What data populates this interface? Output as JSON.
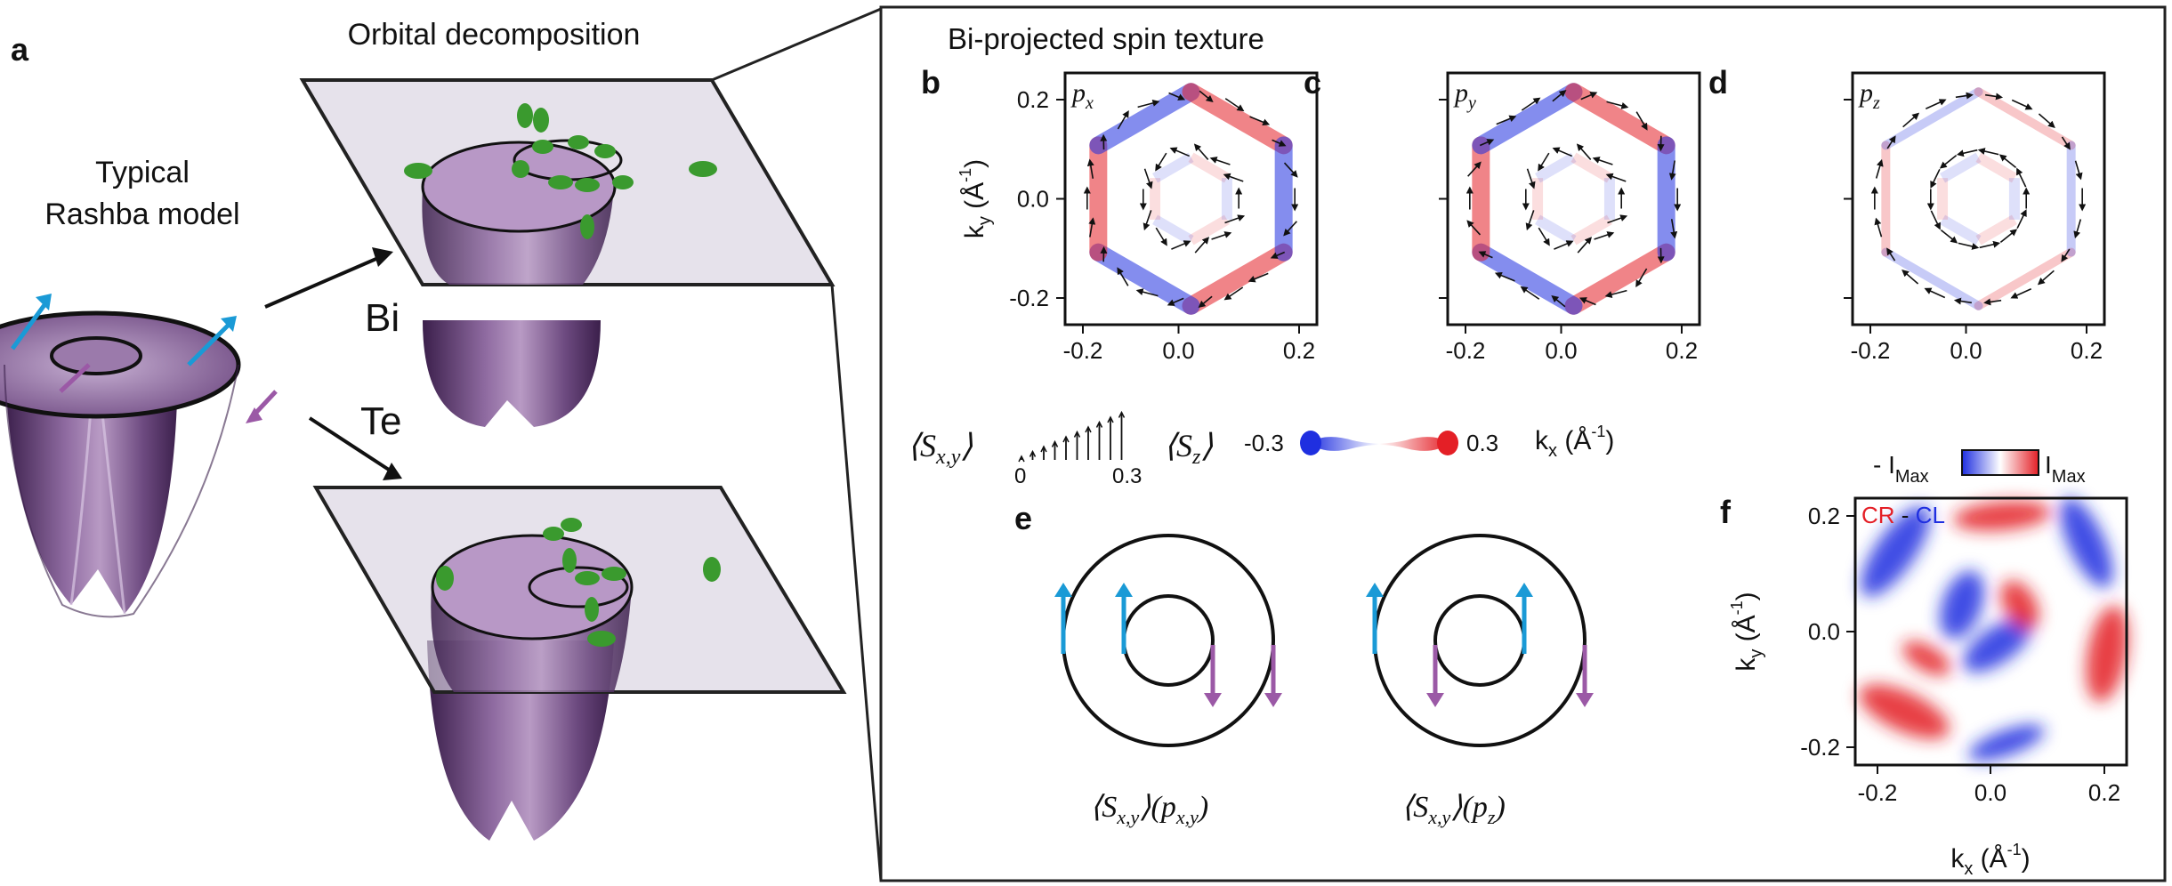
{
  "panel_letters": {
    "a": "a",
    "b": "b",
    "c": "c",
    "d": "d",
    "e": "e",
    "f": "f"
  },
  "panel_a": {
    "caption": [
      "Typical",
      "Rashba model"
    ],
    "orbital_title": "Orbital decomposition",
    "label_bi": "Bi",
    "label_te": "Te"
  },
  "spin_texture": {
    "title": "Bi-projected spin texture",
    "ylabel": "k",
    "ylabel_sub": "y",
    "ylabel_unit": " (Å",
    "ylabel_exp": "-1",
    "ylabel_close": ")",
    "xlabel": "k",
    "xlabel_sub": "x",
    "xlabel_unit": " (Å",
    "xlabel_exp": "-1",
    "xlabel_close": ")",
    "yticks": [
      "0.2",
      "0.0",
      "-0.2"
    ],
    "xticks": [
      "-0.2",
      "0.0",
      "0.2"
    ],
    "panels": [
      {
        "orbital": "p",
        "sub": "x"
      },
      {
        "orbital": "p",
        "sub": "y"
      },
      {
        "orbital": "p",
        "sub": "z"
      }
    ],
    "legend_sxy": "⟨S",
    "legend_sxy_sub": "x,y",
    "legend_sxy_close": "⟩",
    "legend_sz": "⟨S",
    "legend_sz_sub": "z",
    "legend_sz_close": "⟩",
    "legend_sxy_min": "0",
    "legend_sxy_max": "0.3",
    "legend_sz_min": "-0.3",
    "legend_sz_max": "0.3",
    "colors": {
      "positive": "#e41f26",
      "negative": "#1f2fe0",
      "arrow": "#111111"
    }
  },
  "panel_e": {
    "label_left": "⟨S",
    "label_left_sub": "x,y",
    "label_left_rest": "⟩(p",
    "label_left_sub2": "x,y",
    "label_left_close": ")",
    "label_right": "⟨S",
    "label_right_sub": "x,y",
    "label_right_rest": "⟩(p",
    "label_right_sub2": "z",
    "label_right_close": ")",
    "colors": {
      "up": "#1a9ad6",
      "down": "#9b59a6"
    }
  },
  "panel_f": {
    "colorbar_min": "- I",
    "colorbar_min_sub": "Max",
    "colorbar_max": "I",
    "colorbar_max_sub": "Max",
    "legend_cr": "CR",
    "legend_sep": " - ",
    "legend_cl": "CL",
    "ylabel": "k",
    "ylabel_sub": "y",
    "ylabel_unit": " (Å",
    "ylabel_exp": "-1",
    "ylabel_close": ")",
    "xlabel": "k",
    "xlabel_sub": "x",
    "xlabel_unit": " (Å",
    "xlabel_exp": "-1",
    "xlabel_close": ")",
    "yticks": [
      "0.2",
      "0.0",
      "-0.2"
    ],
    "xticks": [
      "-0.2",
      "0.0",
      "0.2"
    ],
    "colors": {
      "cr": "#e41f26",
      "cl": "#1f2fe0"
    }
  }
}
